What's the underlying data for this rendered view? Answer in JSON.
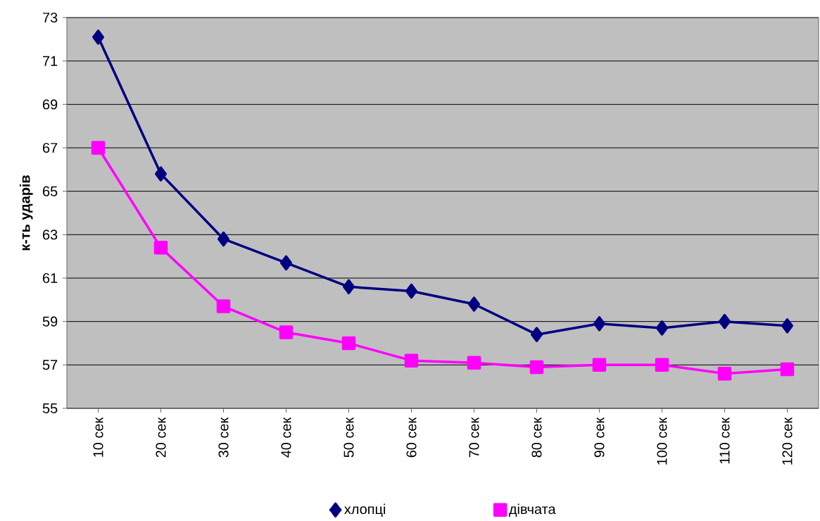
{
  "chart_data": {
    "type": "line",
    "ylabel": "к-ть ударів",
    "categories": [
      "10 сек",
      "20 сек",
      "30 сек",
      "40 сек",
      "50 сек",
      "60 сек",
      "70 сек",
      "80 сек",
      "90 сек",
      "100 сек",
      "110 сек",
      "120 сек"
    ],
    "series": [
      {
        "name": "хлопці",
        "color": "#000080",
        "marker": "diamond",
        "values": [
          72.1,
          65.8,
          62.8,
          61.7,
          60.6,
          60.4,
          59.8,
          58.4,
          58.9,
          58.7,
          59.0,
          58.8
        ]
      },
      {
        "name": "дівчата",
        "color": "#ff00ff",
        "marker": "square",
        "values": [
          67.0,
          62.4,
          59.7,
          58.5,
          58.0,
          57.2,
          57.1,
          56.9,
          57.0,
          57.0,
          56.6,
          56.8
        ]
      }
    ],
    "ylim": [
      55,
      73
    ],
    "yticks": [
      55,
      57,
      59,
      61,
      63,
      65,
      67,
      69,
      71,
      73
    ],
    "grid": "y",
    "legend": "bottom",
    "line_style": "solid"
  }
}
